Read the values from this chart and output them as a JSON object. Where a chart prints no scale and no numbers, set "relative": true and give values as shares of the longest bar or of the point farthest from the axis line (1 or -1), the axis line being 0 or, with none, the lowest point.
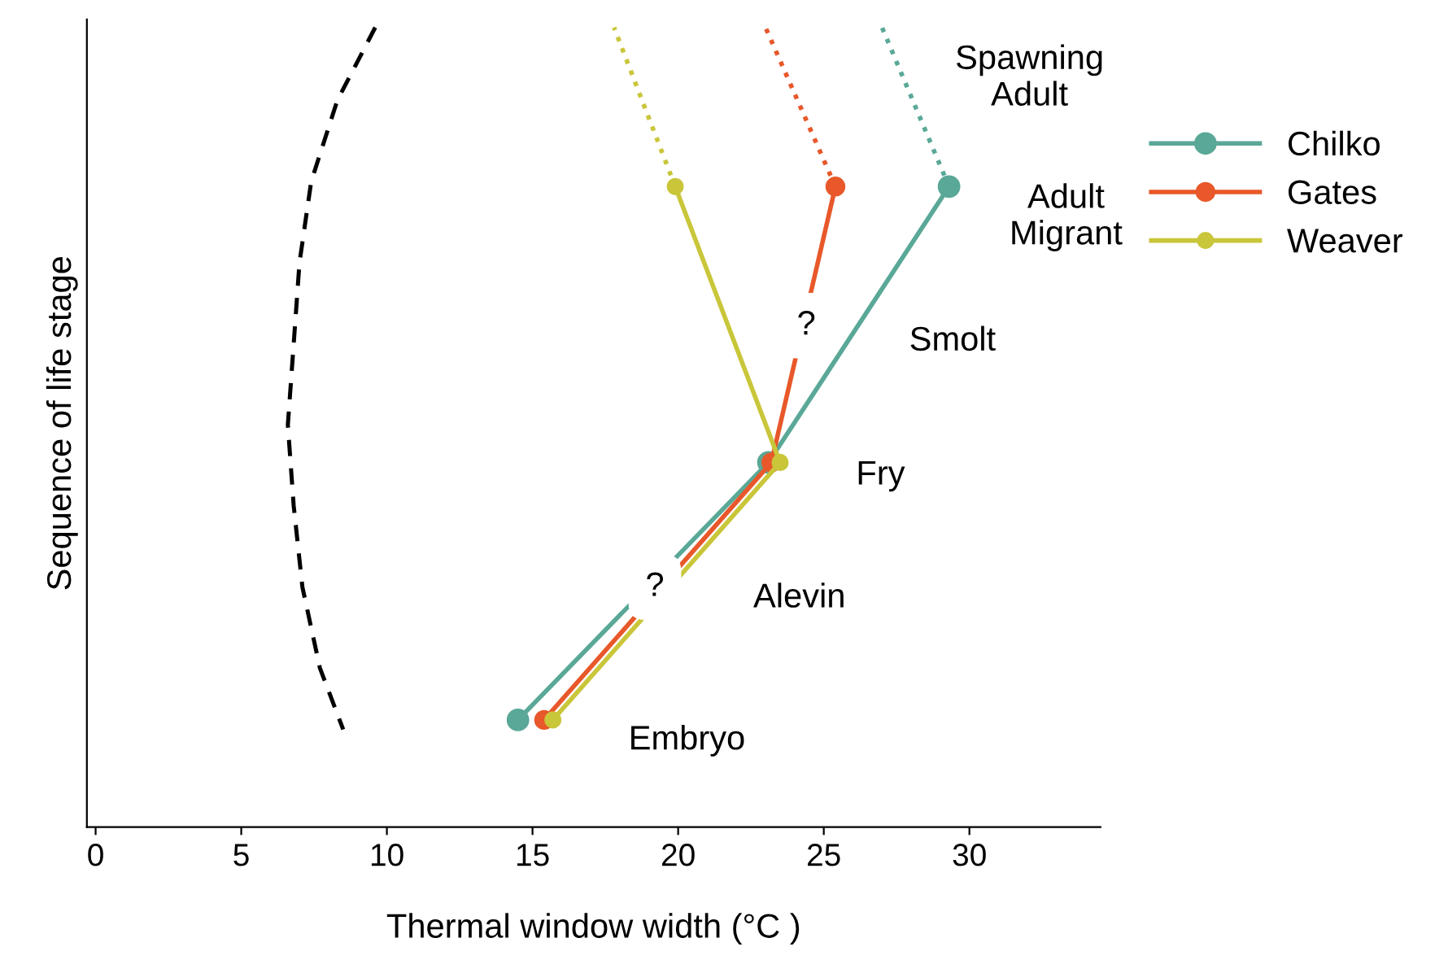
{
  "chart_data": {
    "type": "line",
    "relative": true,
    "xlabel": "Thermal window width (°C )",
    "ylabel": "Sequence of life stage",
    "xlim": [
      -0.3,
      34.5
    ],
    "xticks": [
      0,
      5,
      10,
      15,
      20,
      25,
      30
    ],
    "grid": false,
    "legend": "top right",
    "tick_labels": "x",
    "series": [
      {
        "name": "Chilko",
        "color": "#5aa897",
        "marker": "circle",
        "line_style": "solid",
        "x": [
          14.5,
          23.1,
          29.3
        ],
        "values": [
          0.134,
          0.456,
          0.801
        ]
      },
      {
        "name": "Gates",
        "color": "#e8582a",
        "marker": "circle",
        "line_style": "solid",
        "x": [
          15.4,
          23.2,
          25.4
        ],
        "values": [
          0.134,
          0.456,
          0.801
        ]
      },
      {
        "name": "Weaver",
        "color": "#c9c63a",
        "marker": "circle",
        "line_style": "solid",
        "x": [
          15.7,
          23.5,
          19.9
        ],
        "values": [
          0.134,
          0.456,
          0.801
        ]
      },
      {
        "color": "#5aa897",
        "marker": "none",
        "line_style": "dotted",
        "x": [
          29.3,
          27.0
        ],
        "values": [
          0.801,
          1.0
        ]
      },
      {
        "color": "#e8582a",
        "marker": "none",
        "line_style": "dotted",
        "x": [
          25.4,
          23.0
        ],
        "values": [
          0.801,
          1.0
        ]
      },
      {
        "color": "#c9c63a",
        "marker": "none",
        "line_style": "dotted",
        "x": [
          19.9,
          17.8
        ],
        "values": [
          0.801,
          1.0
        ]
      },
      {
        "color": "#000000",
        "marker": "none",
        "line_style": "dashed",
        "x": [
          9.6,
          8.3,
          7.4,
          7.0,
          6.8,
          6.6,
          6.8,
          7.1,
          7.7,
          8.5
        ],
        "values": [
          1.0,
          0.909,
          0.807,
          0.706,
          0.604,
          0.503,
          0.402,
          0.3,
          0.199,
          0.122
        ]
      }
    ],
    "annotations": [
      "Spawning\nAdult",
      "Adult\nMigrant",
      "Smolt",
      "Fry",
      "Alevin",
      "Embryo",
      {
        "text": "?",
        "x": 24.4,
        "y": 0.627
      },
      {
        "text": "?",
        "x": 19.2,
        "y": 0.3
      }
    ]
  }
}
